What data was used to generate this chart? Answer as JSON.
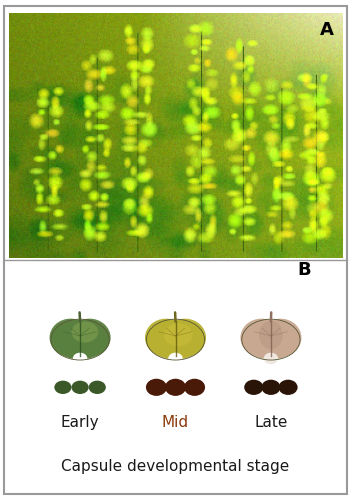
{
  "fig_width": 3.51,
  "fig_height": 5.0,
  "dpi": 100,
  "panel_A_label": "A",
  "panel_B_label": "B",
  "label_fontsize": 13,
  "label_fontweight": "bold",
  "stage_labels": [
    "Early",
    "Mid",
    "Late"
  ],
  "stage_label_colors": [
    "#1a1a1a",
    "#8B3A0A",
    "#1a1a1a"
  ],
  "xlabel": "Capsule developmental stage",
  "xlabel_fontsize": 11,
  "xlabel_fontweight": "normal",
  "border_color": "#999999",
  "background_color": "#ffffff",
  "panel_split": 0.478
}
